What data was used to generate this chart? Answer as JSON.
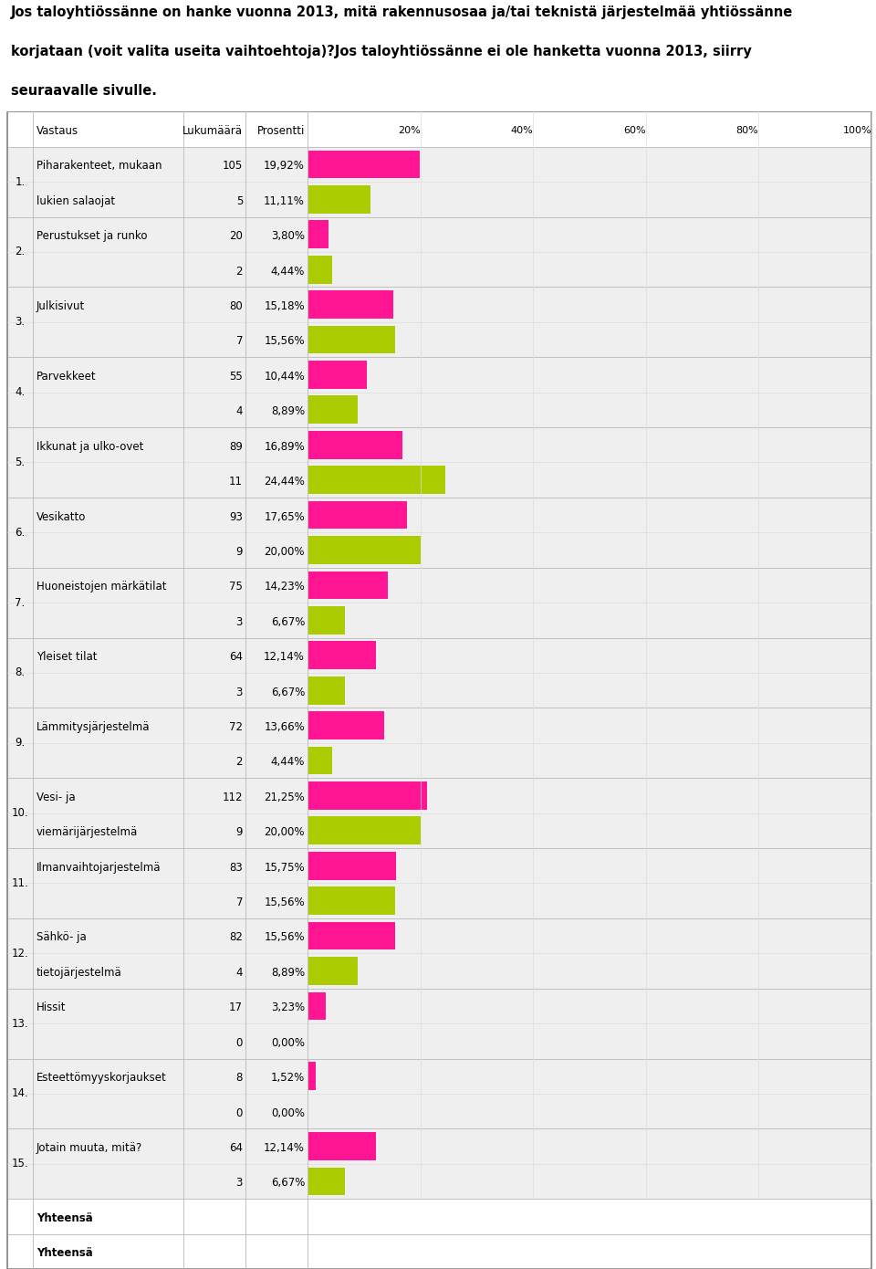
{
  "title_line1": "Jos taloyhtiössänne on hanke vuonna 2013, mitä rakennusosaa ja/tai teknistä järjestelmää yhtiössänne",
  "title_line2": "korjataan (voit valita useita vaihtoehtoja)?Jos taloyhtiössänne ei ole hanketta vuonna 2013, siirry",
  "title_line3": "seuraavalle sivulle.",
  "rows": [
    {
      "num": "1.",
      "label1": "Piharakenteet, mukaan",
      "label2": "lukien salaojat",
      "count1": 105,
      "pct1": "19,92%",
      "val1": 19.92,
      "count2": 5,
      "pct2": "11,11%",
      "val2": 11.11
    },
    {
      "num": "2.",
      "label1": "Perustukset ja runko",
      "label2": "",
      "count1": 20,
      "pct1": "3,80%",
      "val1": 3.8,
      "count2": 2,
      "pct2": "4,44%",
      "val2": 4.44
    },
    {
      "num": "3.",
      "label1": "Julkisivut",
      "label2": "",
      "count1": 80,
      "pct1": "15,18%",
      "val1": 15.18,
      "count2": 7,
      "pct2": "15,56%",
      "val2": 15.56
    },
    {
      "num": "4.",
      "label1": "Parvekkeet",
      "label2": "",
      "count1": 55,
      "pct1": "10,44%",
      "val1": 10.44,
      "count2": 4,
      "pct2": "8,89%",
      "val2": 8.89
    },
    {
      "num": "5.",
      "label1": "Ikkunat ja ulko-ovet",
      "label2": "",
      "count1": 89,
      "pct1": "16,89%",
      "val1": 16.89,
      "count2": 11,
      "pct2": "24,44%",
      "val2": 24.44
    },
    {
      "num": "6.",
      "label1": "Vesikatto",
      "label2": "",
      "count1": 93,
      "pct1": "17,65%",
      "val1": 17.65,
      "count2": 9,
      "pct2": "20,00%",
      "val2": 20.0
    },
    {
      "num": "7.",
      "label1": "Huoneistojen märkätilat",
      "label2": "",
      "count1": 75,
      "pct1": "14,23%",
      "val1": 14.23,
      "count2": 3,
      "pct2": "6,67%",
      "val2": 6.67
    },
    {
      "num": "8.",
      "label1": "Yleiset tilat",
      "label2": "",
      "count1": 64,
      "pct1": "12,14%",
      "val1": 12.14,
      "count2": 3,
      "pct2": "6,67%",
      "val2": 6.67
    },
    {
      "num": "9.",
      "label1": "Lämmitysjärjestelmä",
      "label2": "",
      "count1": 72,
      "pct1": "13,66%",
      "val1": 13.66,
      "count2": 2,
      "pct2": "4,44%",
      "val2": 4.44
    },
    {
      "num": "10.",
      "label1": "Vesi- ja",
      "label2": "viemärijärjestelmä",
      "count1": 112,
      "pct1": "21,25%",
      "val1": 21.25,
      "count2": 9,
      "pct2": "20,00%",
      "val2": 20.0
    },
    {
      "num": "11.",
      "label1": "Ilmanvaihtojarjestelmä",
      "label2": "",
      "count1": 83,
      "pct1": "15,75%",
      "val1": 15.75,
      "count2": 7,
      "pct2": "15,56%",
      "val2": 15.56
    },
    {
      "num": "12.",
      "label1": "Sähkö- ja",
      "label2": "tietojärjestelmä",
      "count1": 82,
      "pct1": "15,56%",
      "val1": 15.56,
      "count2": 4,
      "pct2": "8,89%",
      "val2": 8.89
    },
    {
      "num": "13.",
      "label1": "Hissit",
      "label2": "",
      "count1": 17,
      "pct1": "3,23%",
      "val1": 3.23,
      "count2": 0,
      "pct2": "0,00%",
      "val2": 0.0
    },
    {
      "num": "14.",
      "label1": "Esteettömyyskorjaukset",
      "label2": "",
      "count1": 8,
      "pct1": "1,52%",
      "val1": 1.52,
      "count2": 0,
      "pct2": "0,00%",
      "val2": 0.0
    },
    {
      "num": "15.",
      "label1": "Jotain muuta, mitä?",
      "label2": "",
      "count1": 64,
      "pct1": "12,14%",
      "val1": 12.14,
      "count2": 3,
      "pct2": "6,67%",
      "val2": 6.67
    }
  ],
  "footer_rows": [
    "Yhteensä",
    "Yhteensä"
  ],
  "color_pink": "#FF1493",
  "color_green": "#AACC00",
  "color_bg": "#EFEFEF",
  "color_border": "#C0C0C0",
  "color_white": "#FFFFFF"
}
